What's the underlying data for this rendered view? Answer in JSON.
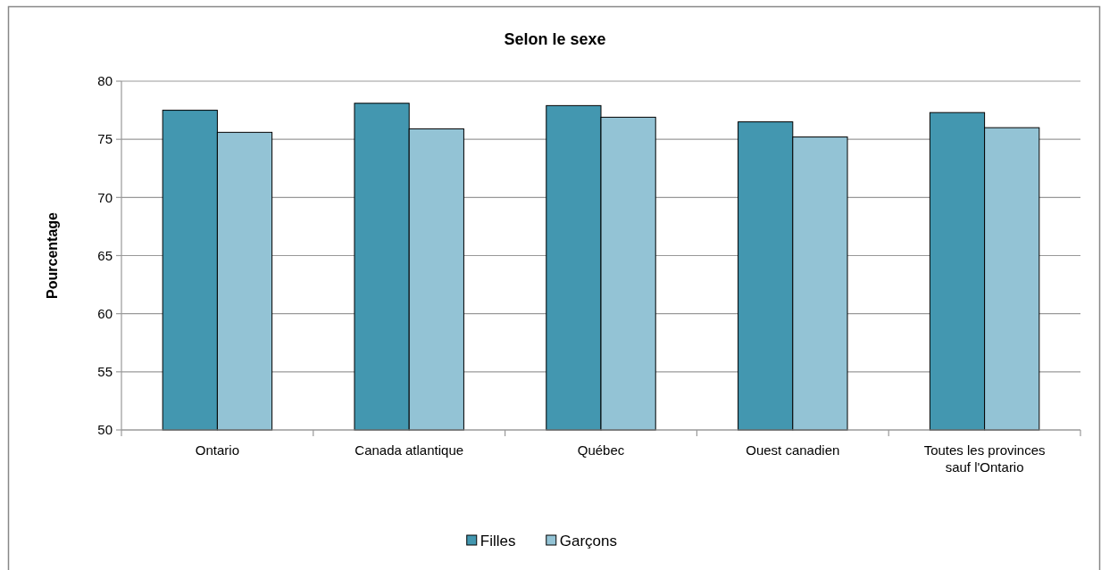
{
  "chart_data": {
    "type": "bar",
    "title": "Selon le sexe",
    "ylabel": "Pourcentage",
    "categories": [
      "Ontario",
      "Canada atlantique",
      "Québec",
      "Ouest canadien",
      "Toutes les provinces sauf l'Ontario"
    ],
    "series": [
      {
        "name": "Filles",
        "color": "#4397b0",
        "values": [
          77.5,
          78.1,
          77.9,
          76.5,
          77.3
        ]
      },
      {
        "name": "Garçons",
        "color": "#93c3d5",
        "values": [
          75.6,
          75.9,
          76.9,
          75.2,
          76.0
        ]
      }
    ],
    "ylim": [
      50,
      80
    ],
    "yticks": [
      50,
      55,
      60,
      65,
      70,
      75,
      80
    ],
    "grid": "y",
    "legend": "bottom"
  }
}
